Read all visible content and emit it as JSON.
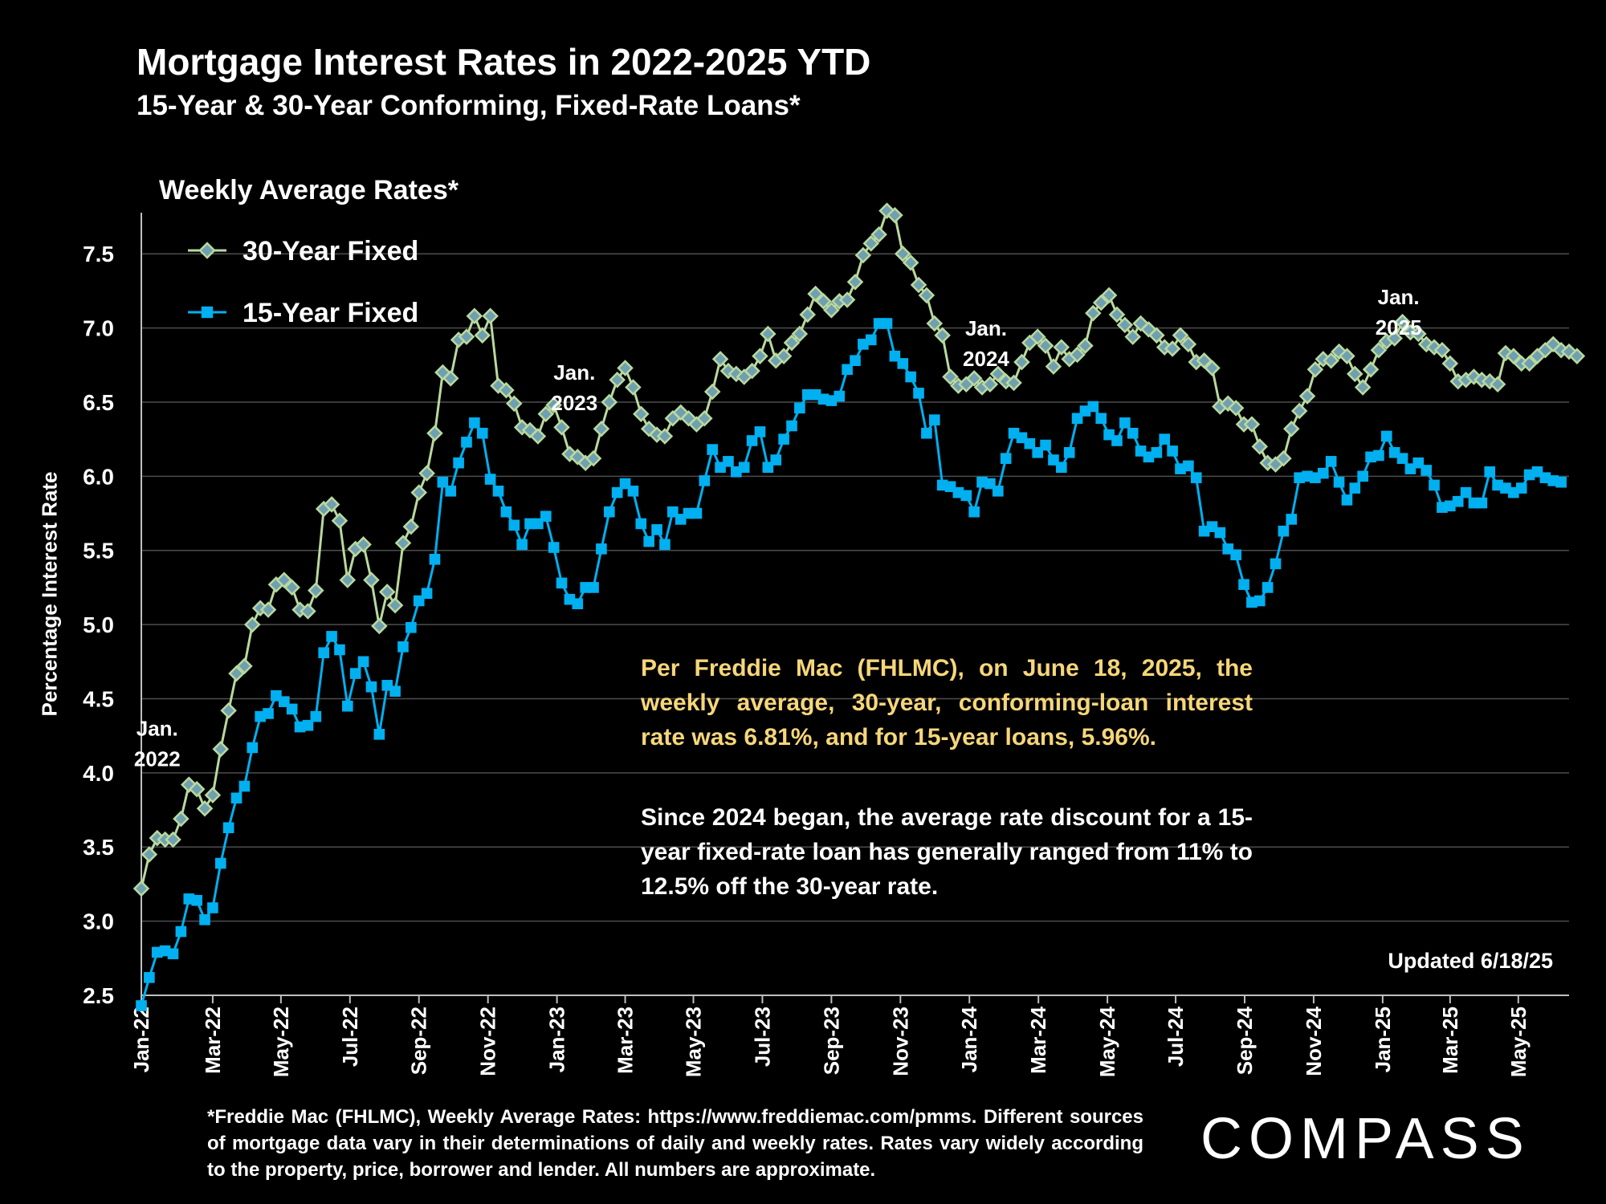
{
  "header": {
    "title": "Mortgage Interest Rates in 2022-2025 YTD",
    "subtitle": "15-Year & 30-Year Conforming, Fixed-Rate Loans*"
  },
  "panel_label": "Weekly Average Rates*",
  "notes": {
    "highlight": "Per Freddie Mac (FHLMC), on June 18, 2025, the weekly average, 30-year, conforming-loan interest rate was 6.81%, and for 15-year loans, 5.96%.",
    "discount": "Since 2024 began, the average rate discount for a 15-year fixed-rate loan has generally ranged from 11% to 12.5% off the 30-year rate."
  },
  "updated": "Updated 6/18/25",
  "footnote": "*Freddie Mac (FHLMC), Weekly Average Rates:  https://www.freddiemac.com/pmms. Different sources of mortgage data vary in their determinations of daily and weekly rates. Rates vary widely according to the property, price, borrower and lender.  All numbers are approximate.",
  "brand": "COMPASS",
  "colors": {
    "background": "#000000",
    "series_30": "#b9d99e",
    "series_30_marker": "#6f9fb0",
    "series_15": "#00b0f0",
    "gridline": "#4d4d4d",
    "highlight_text": "#f6d679"
  },
  "chart_data": {
    "type": "line",
    "ylabel": "Percentage Interest  Rate",
    "ylim": [
      2.5,
      7.75
    ],
    "yticks": [
      "2.5",
      "3.0",
      "3.5",
      "4.0",
      "4.5",
      "5.0",
      "5.5",
      "6.0",
      "6.5",
      "7.0",
      "7.5"
    ],
    "grid": true,
    "legend_position": "top-left",
    "x_start": 0,
    "x_end": 180,
    "x_ticks": [
      {
        "label": "Jan-22",
        "week": 0
      },
      {
        "label": "Mar-22",
        "week": 9
      },
      {
        "label": "May-22",
        "week": 17.6
      },
      {
        "label": "Jul-22",
        "week": 26.3
      },
      {
        "label": "Sep-22",
        "week": 35
      },
      {
        "label": "Nov-22",
        "week": 43.7
      },
      {
        "label": "Jan-23",
        "week": 52.4
      },
      {
        "label": "Mar-23",
        "week": 61
      },
      {
        "label": "May-23",
        "week": 69.6
      },
      {
        "label": "Jul-23",
        "week": 78.3
      },
      {
        "label": "Sep-23",
        "week": 87
      },
      {
        "label": "Nov-23",
        "week": 95.7
      },
      {
        "label": "Jan-24",
        "week": 104.4
      },
      {
        "label": "Mar-24",
        "week": 113.1
      },
      {
        "label": "May-24",
        "week": 121.8
      },
      {
        "label": "Jul-24",
        "week": 130.4
      },
      {
        "label": "Sep-24",
        "week": 139.1
      },
      {
        "label": "Nov-24",
        "week": 147.8
      },
      {
        "label": "Jan-25",
        "week": 156.5
      },
      {
        "label": "Mar-25",
        "week": 165
      },
      {
        "label": "May-25",
        "week": 173.6
      }
    ],
    "annotations": [
      {
        "lines": [
          "Jan.",
          "2022"
        ],
        "week": 2,
        "value": 4.25
      },
      {
        "lines": [
          "Jan.",
          "2023"
        ],
        "week": 54.6,
        "value": 6.65
      },
      {
        "lines": [
          "Jan.",
          "2024"
        ],
        "week": 106.5,
        "value": 6.95
      },
      {
        "lines": [
          "Jan.",
          "2025"
        ],
        "week": 158.5,
        "value": 7.16
      }
    ],
    "series": [
      {
        "name": "30-Year Fixed",
        "values": [
          3.22,
          3.45,
          3.56,
          3.55,
          3.55,
          3.69,
          3.92,
          3.89,
          3.76,
          3.85,
          4.16,
          4.42,
          4.67,
          4.72,
          5.0,
          5.11,
          5.1,
          5.27,
          5.3,
          5.25,
          5.1,
          5.09,
          5.23,
          5.78,
          5.81,
          5.7,
          5.3,
          5.51,
          5.54,
          5.3,
          4.99,
          5.22,
          5.13,
          5.55,
          5.66,
          5.89,
          6.02,
          6.29,
          6.7,
          6.66,
          6.92,
          6.94,
          7.08,
          6.95,
          7.08,
          6.61,
          6.58,
          6.49,
          6.33,
          6.31,
          6.27,
          6.42,
          6.48,
          6.33,
          6.15,
          6.13,
          6.09,
          6.12,
          6.32,
          6.5,
          6.65,
          6.73,
          6.6,
          6.42,
          6.32,
          6.28,
          6.27,
          6.39,
          6.43,
          6.39,
          6.35,
          6.39,
          6.57,
          6.79,
          6.71,
          6.69,
          6.67,
          6.71,
          6.81,
          6.96,
          6.78,
          6.81,
          6.9,
          6.96,
          7.09,
          7.23,
          7.18,
          7.12,
          7.18,
          7.19,
          7.31,
          7.49,
          7.57,
          7.63,
          7.79,
          7.76,
          7.5,
          7.44,
          7.29,
          7.22,
          7.03,
          6.95,
          6.67,
          6.61,
          6.62,
          6.66,
          6.6,
          6.62,
          6.69,
          6.64,
          6.63,
          6.77,
          6.9,
          6.94,
          6.88,
          6.74,
          6.87,
          6.79,
          6.82,
          6.88,
          7.1,
          7.17,
          7.22,
          7.09,
          7.02,
          6.94,
          7.03,
          6.99,
          6.95,
          6.87,
          6.86,
          6.95,
          6.89,
          6.77,
          6.78,
          6.73,
          6.47,
          6.49,
          6.46,
          6.35,
          6.35,
          6.2,
          6.09,
          6.08,
          6.12,
          6.32,
          6.44,
          6.54,
          6.72,
          6.79,
          6.78,
          6.84,
          6.81,
          6.69,
          6.6,
          6.72,
          6.85,
          6.91,
          6.93,
          7.04,
          6.97,
          6.96,
          6.89,
          6.87,
          6.85,
          6.76,
          6.64,
          6.65,
          6.67,
          6.65,
          6.64,
          6.62,
          6.83,
          6.81,
          6.76,
          6.76,
          6.81,
          6.85,
          6.89,
          6.85,
          6.84,
          6.81
        ]
      },
      {
        "name": "15-Year Fixed",
        "values": [
          2.43,
          2.62,
          2.79,
          2.8,
          2.78,
          2.93,
          3.15,
          3.14,
          3.01,
          3.09,
          3.39,
          3.63,
          3.83,
          3.91,
          4.17,
          4.38,
          4.4,
          4.52,
          4.48,
          4.43,
          4.31,
          4.32,
          4.38,
          4.81,
          4.92,
          4.83,
          4.45,
          4.67,
          4.75,
          4.58,
          4.26,
          4.59,
          4.55,
          4.85,
          4.98,
          5.16,
          5.21,
          5.44,
          5.96,
          5.9,
          6.09,
          6.23,
          6.36,
          6.29,
          5.98,
          5.9,
          5.76,
          5.67,
          5.54,
          5.68,
          5.68,
          5.73,
          5.52,
          5.28,
          5.17,
          5.14,
          5.25,
          5.25,
          5.51,
          5.76,
          5.89,
          5.95,
          5.9,
          5.68,
          5.56,
          5.64,
          5.54,
          5.76,
          5.71,
          5.75,
          5.75,
          5.97,
          6.18,
          6.06,
          6.1,
          6.03,
          6.06,
          6.24,
          6.3,
          6.06,
          6.11,
          6.25,
          6.34,
          6.46,
          6.55,
          6.55,
          6.52,
          6.51,
          6.54,
          6.72,
          6.78,
          6.89,
          6.92,
          7.03,
          7.03,
          6.81,
          6.76,
          6.67,
          6.56,
          6.29,
          6.38,
          5.94,
          5.93,
          5.89,
          5.87,
          5.76,
          5.96,
          5.95,
          5.9,
          6.12,
          6.29,
          6.26,
          6.22,
          6.16,
          6.21,
          6.11,
          6.06,
          6.16,
          6.39,
          6.44,
          6.47,
          6.39,
          6.28,
          6.24,
          6.36,
          6.29,
          6.17,
          6.13,
          6.16,
          6.25,
          6.17,
          6.05,
          6.07,
          5.99,
          5.63,
          5.66,
          5.62,
          5.51,
          5.47,
          5.27,
          5.15,
          5.16,
          5.25,
          5.41,
          5.63,
          5.71,
          5.99,
          6.0,
          5.99,
          6.02,
          6.1,
          5.96,
          5.84,
          5.92,
          6.0,
          6.13,
          6.14,
          6.27,
          6.16,
          6.12,
          6.05,
          6.09,
          6.04,
          5.94,
          5.79,
          5.8,
          5.83,
          5.89,
          5.82,
          5.82,
          6.03,
          5.94,
          5.92,
          5.89,
          5.92,
          6.01,
          6.03,
          5.99,
          5.97,
          5.96
        ]
      }
    ]
  }
}
